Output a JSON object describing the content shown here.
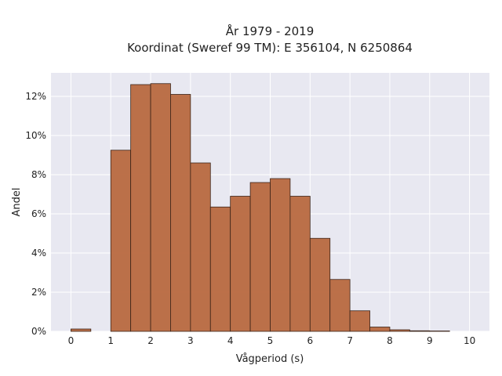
{
  "chart_data": {
    "type": "bar",
    "title": "År 1979 - 2019",
    "subtitle": "Koordinat (Sweref 99 TM): E 356104, N 6250864",
    "xlabel": "Vågperiod (s)",
    "ylabel": "Andel",
    "xlim": [
      -0.5,
      10.5
    ],
    "ylim": [
      0,
      13.2
    ],
    "bin_width": 0.5,
    "bins": [
      {
        "x0": 0.0,
        "value": 0.12
      },
      {
        "x0": 0.5,
        "value": 0.0
      },
      {
        "x0": 1.0,
        "value": 9.25
      },
      {
        "x0": 1.5,
        "value": 12.6
      },
      {
        "x0": 2.0,
        "value": 12.65
      },
      {
        "x0": 2.5,
        "value": 12.1
      },
      {
        "x0": 3.0,
        "value": 8.6
      },
      {
        "x0": 3.5,
        "value": 6.35
      },
      {
        "x0": 4.0,
        "value": 6.9
      },
      {
        "x0": 4.5,
        "value": 7.6
      },
      {
        "x0": 5.0,
        "value": 7.8
      },
      {
        "x0": 5.5,
        "value": 6.9
      },
      {
        "x0": 6.0,
        "value": 4.75
      },
      {
        "x0": 6.5,
        "value": 2.65
      },
      {
        "x0": 7.0,
        "value": 1.05
      },
      {
        "x0": 7.5,
        "value": 0.22
      },
      {
        "x0": 8.0,
        "value": 0.08
      },
      {
        "x0": 8.5,
        "value": 0.03
      },
      {
        "x0": 9.0,
        "value": 0.02
      }
    ],
    "x_ticks": [
      0,
      1,
      2,
      3,
      4,
      5,
      6,
      7,
      8,
      9,
      10
    ],
    "y_ticks": [
      0,
      2,
      4,
      6,
      8,
      10,
      12
    ],
    "y_tick_labels": [
      "0%",
      "2%",
      "4%",
      "6%",
      "8%",
      "10%",
      "12%"
    ],
    "grid": true,
    "colors": {
      "bar_fill": "#b8693f",
      "bar_edge": "#3b2418",
      "plot_background": "#e8e8f1",
      "grid": "#ffffff"
    }
  }
}
